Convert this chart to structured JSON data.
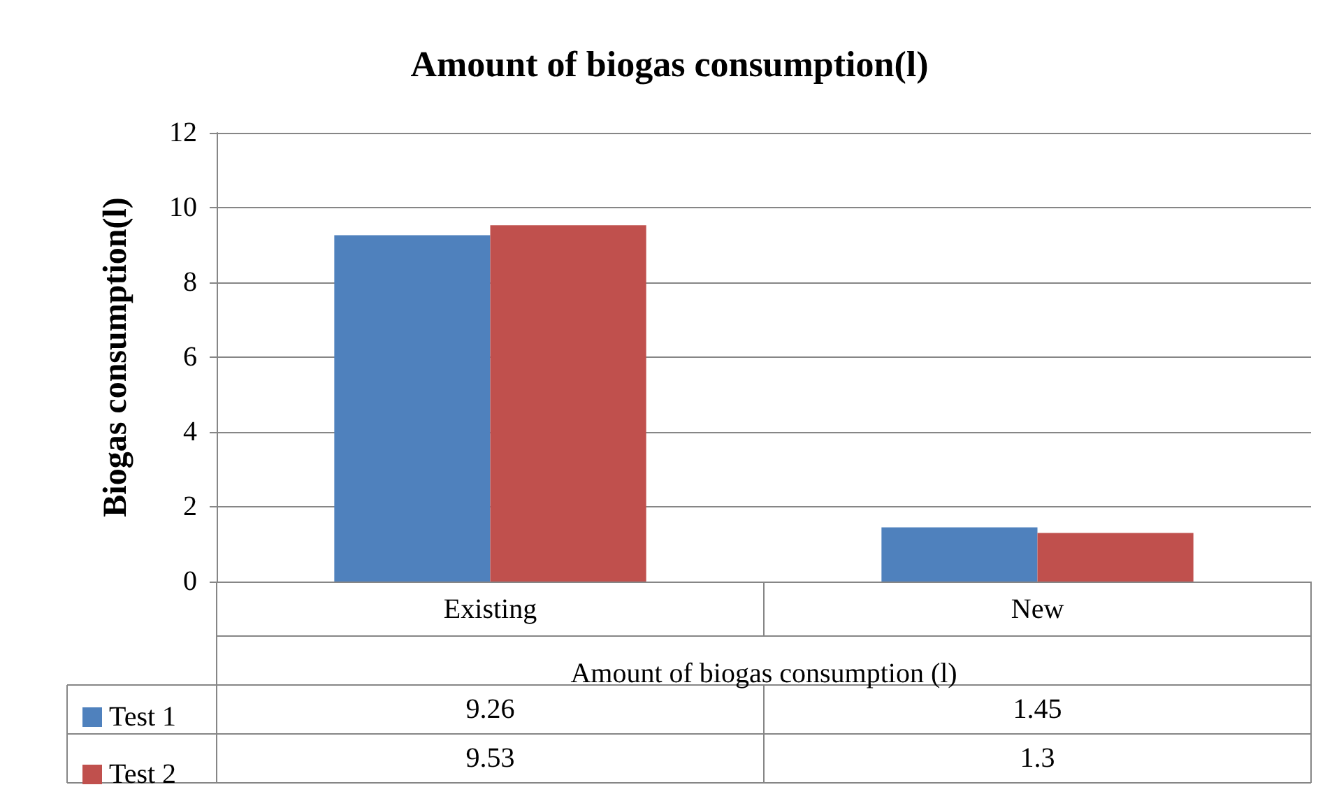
{
  "chart_data": {
    "type": "bar",
    "title": "Amount of biogas consumption(l)",
    "ylabel": "Biogas consumption(l)",
    "xlabel": "Amount of biogas consumption (l)",
    "categories": [
      "Existing",
      "New"
    ],
    "series": [
      {
        "name": "Test 1",
        "color": "#4f81bd",
        "values": [
          9.26,
          1.45
        ]
      },
      {
        "name": "Test 2",
        "color": "#c0504d",
        "values": [
          9.53,
          1.3
        ]
      }
    ],
    "ylim": [
      0,
      12
    ],
    "yticks": [
      0,
      2,
      4,
      6,
      8,
      10,
      12
    ],
    "grid": "y",
    "legend": "bottom left",
    "data_labels": true
  }
}
